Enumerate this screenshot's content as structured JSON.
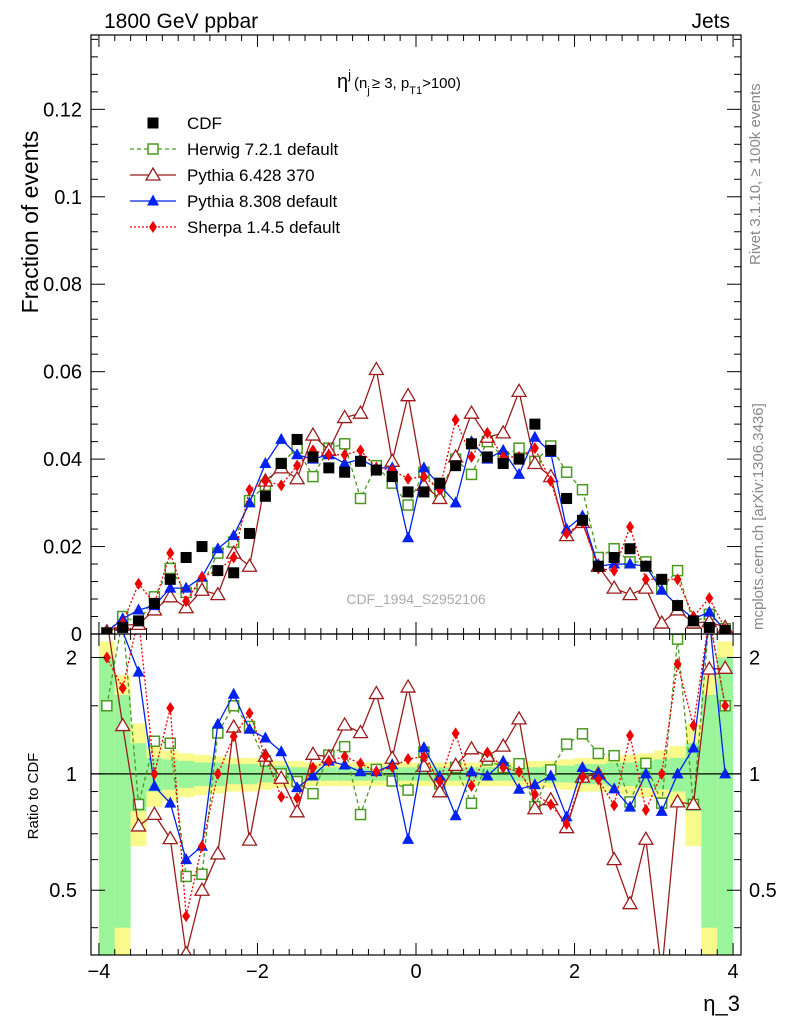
{
  "header": {
    "left": "1800 GeV ppbar",
    "right": "Jets",
    "side_rivet": "Rivet 3.1.10, ≥ 100k events",
    "side_mcplots": "mcplots.cern.ch [arXiv:1306.3436]",
    "watermark": "CDF_1994_S2952106"
  },
  "chart_data": {
    "type": "line",
    "title_main": "η",
    "title_sup": "j",
    "title_paren": "(n",
    "title_j": "j",
    "title_mid": "≥ 3, p",
    "title_t1": "T1",
    "title_end": ">100)",
    "xlabel": "η_3",
    "ylabel": "Fraction of events",
    "ylabel_ratio": "Ratio to CDF",
    "xlim": [
      -4.1,
      4.1
    ],
    "ylim": [
      0,
      0.137
    ],
    "ratio_ylim": [
      0.34,
      2.3
    ],
    "xticks": [
      -4,
      -2,
      0,
      2,
      4
    ],
    "xtick_labels": [
      "−4",
      "−2",
      "0",
      "2",
      "4"
    ],
    "yticks": [
      0,
      0.02,
      0.04,
      0.06,
      0.08,
      0.1,
      0.12
    ],
    "ytick_labels": [
      "0",
      "0.02",
      "0.04",
      "0.06",
      "0.08",
      "0.1",
      "0.12"
    ],
    "ratio_yticks": [
      0.5,
      1,
      2
    ],
    "ratio_ytick_labels": [
      "0.5",
      "1",
      "2"
    ],
    "x": [
      -3.9,
      -3.7,
      -3.5,
      -3.3,
      -3.1,
      -2.9,
      -2.7,
      -2.5,
      -2.3,
      -2.1,
      -1.9,
      -1.7,
      -1.5,
      -1.3,
      -1.1,
      -0.9,
      -0.7,
      -0.5,
      -0.3,
      -0.1,
      0.1,
      0.3,
      0.5,
      0.7,
      0.9,
      1.1,
      1.3,
      1.5,
      1.7,
      1.9,
      2.1,
      2.3,
      2.5,
      2.7,
      2.9,
      3.1,
      3.3,
      3.5,
      3.7,
      3.9
    ],
    "band_inner": [
      1.0,
      0.6,
      0.2,
      0.1,
      0.09,
      0.08,
      0.07,
      0.07,
      0.06,
      0.06,
      0.05,
      0.05,
      0.04,
      0.04,
      0.04,
      0.04,
      0.04,
      0.04,
      0.04,
      0.04,
      0.04,
      0.04,
      0.04,
      0.04,
      0.04,
      0.04,
      0.04,
      0.04,
      0.05,
      0.05,
      0.06,
      0.06,
      0.07,
      0.07,
      0.08,
      0.09,
      0.1,
      0.2,
      0.6,
      1.0
    ],
    "band_outer": [
      1.2,
      0.8,
      0.35,
      0.18,
      0.15,
      0.13,
      0.12,
      0.11,
      0.1,
      0.1,
      0.09,
      0.08,
      0.08,
      0.07,
      0.07,
      0.07,
      0.07,
      0.07,
      0.07,
      0.07,
      0.07,
      0.07,
      0.07,
      0.07,
      0.07,
      0.07,
      0.07,
      0.08,
      0.08,
      0.09,
      0.1,
      0.1,
      0.11,
      0.12,
      0.13,
      0.15,
      0.18,
      0.35,
      0.8,
      1.2
    ],
    "series": [
      {
        "name": "CDF",
        "color": "#000000",
        "marker": "square-filled",
        "dash": "none",
        "show_line": false,
        "values": [
          0.0002,
          0.0015,
          0.003,
          0.007,
          0.0125,
          0.0175,
          0.02,
          0.0145,
          0.014,
          0.023,
          0.0315,
          0.039,
          0.0445,
          0.0405,
          0.038,
          0.037,
          0.0395,
          0.0375,
          0.036,
          0.0325,
          0.0325,
          0.0345,
          0.0385,
          0.0435,
          0.0405,
          0.039,
          0.04,
          0.048,
          0.042,
          0.031,
          0.026,
          0.0155,
          0.0175,
          0.0195,
          0.0155,
          0.0125,
          0.0065,
          0.003,
          0.0015,
          0.0008
        ]
      },
      {
        "name": "Herwig 7.2.1 default",
        "color": "#4a9a1f",
        "marker": "square-open",
        "dash": "4,3",
        "show_line": true,
        "values": [
          0.0003,
          0.004,
          0.0025,
          0.0085,
          0.015,
          0.0095,
          0.011,
          0.0185,
          0.021,
          0.0305,
          0.034,
          0.039,
          0.0425,
          0.036,
          0.0425,
          0.0435,
          0.031,
          0.0385,
          0.0345,
          0.0295,
          0.037,
          0.0325,
          0.04,
          0.0365,
          0.044,
          0.0405,
          0.0425,
          0.0395,
          0.043,
          0.037,
          0.033,
          0.0175,
          0.0195,
          0.0165,
          0.0165,
          0.0105,
          0.0145,
          0.0025,
          0.0045,
          0.0012
        ]
      },
      {
        "name": "Pythia 6.428 370",
        "color": "#9b1c1c",
        "marker": "triangle-open",
        "dash": "none",
        "show_line": true,
        "values": [
          0.0005,
          0.002,
          0.0022,
          0.0055,
          0.0085,
          0.006,
          0.01,
          0.009,
          0.0185,
          0.0155,
          0.035,
          0.038,
          0.0355,
          0.0455,
          0.042,
          0.0495,
          0.0505,
          0.0605,
          0.0395,
          0.0545,
          0.034,
          0.031,
          0.0405,
          0.0505,
          0.045,
          0.046,
          0.0555,
          0.039,
          0.036,
          0.0225,
          0.0255,
          0.0155,
          0.0105,
          0.009,
          0.0105,
          0.0025,
          0.0055,
          0.0025,
          0.0028,
          0.0015
        ]
      },
      {
        "name": "Pythia 8.308 default",
        "color": "#0022ee",
        "marker": "triangle-filled",
        "dash": "none",
        "show_line": true,
        "values": [
          0.0005,
          0.0035,
          0.0055,
          0.0065,
          0.0105,
          0.0105,
          0.013,
          0.0195,
          0.0225,
          0.03,
          0.039,
          0.0445,
          0.041,
          0.04,
          0.041,
          0.039,
          0.04,
          0.038,
          0.038,
          0.022,
          0.038,
          0.034,
          0.03,
          0.044,
          0.04,
          0.042,
          0.0365,
          0.045,
          0.0415,
          0.024,
          0.027,
          0.0155,
          0.016,
          0.016,
          0.0155,
          0.01,
          0.0065,
          0.0035,
          0.005,
          0.0008
        ]
      },
      {
        "name": "Sherpa 1.4.5 default",
        "color": "#ee0000",
        "marker": "diamond-filled",
        "dash": "2,2",
        "show_line": true,
        "values": [
          0.0004,
          0.0025,
          0.0115,
          0.007,
          0.0185,
          0.0075,
          0.013,
          0.0145,
          0.0175,
          0.033,
          0.035,
          0.034,
          0.0385,
          0.042,
          0.041,
          0.041,
          0.042,
          0.038,
          0.0375,
          0.0355,
          0.036,
          0.033,
          0.049,
          0.0405,
          0.046,
          0.0405,
          0.0405,
          0.0425,
          0.035,
          0.023,
          0.0255,
          0.015,
          0.0145,
          0.0245,
          0.0125,
          0.0125,
          0.0125,
          0.004,
          0.0082,
          0.0012
        ]
      }
    ],
    "legend": [
      "CDF",
      "Herwig 7.2.1 default",
      "Pythia 6.428 370",
      "Pythia 8.308 default",
      "Sherpa 1.4.5 default"
    ]
  }
}
